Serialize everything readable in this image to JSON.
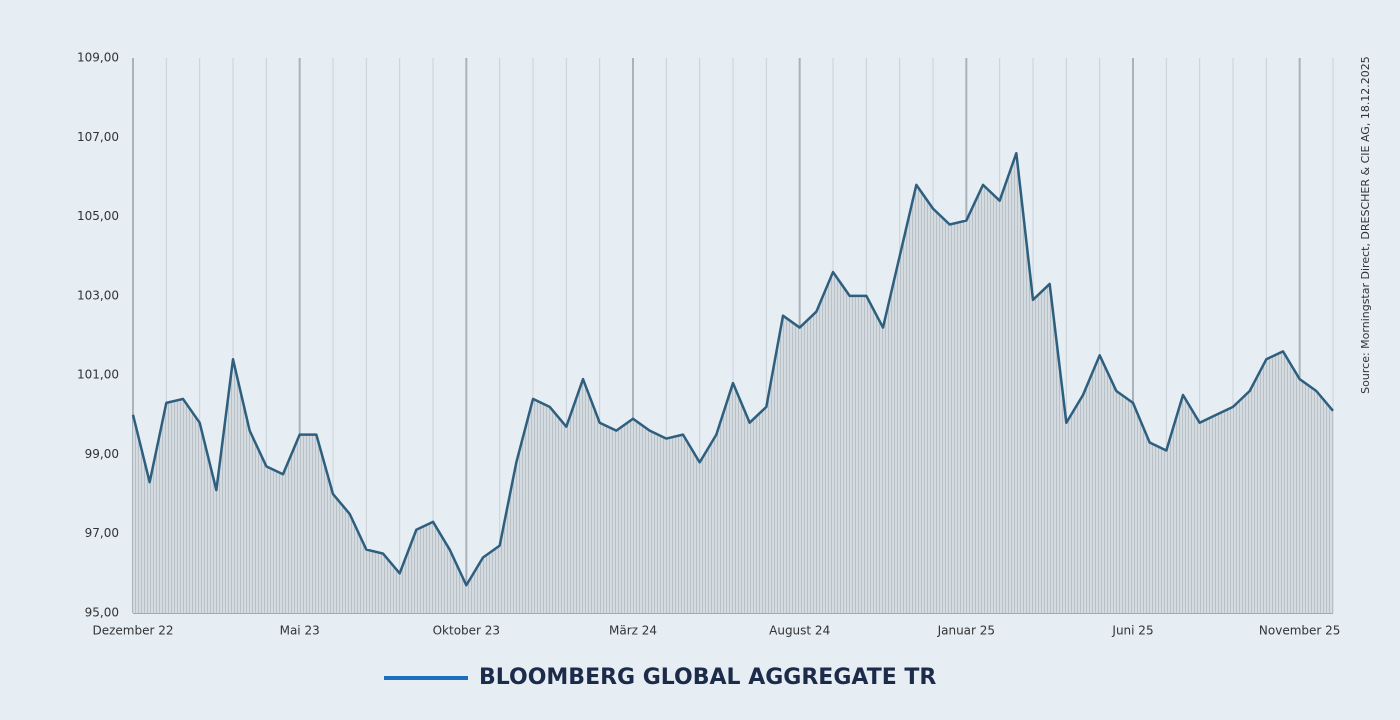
{
  "chart_data": {
    "type": "line",
    "source": "Source: Morningstar Direct, DRESCHER & CIE AG, 18.12.2025",
    "categories": [
      "Dezember 22",
      null,
      null,
      null,
      null,
      null,
      null,
      null,
      null,
      null,
      "Mai 23",
      null,
      null,
      null,
      null,
      null,
      null,
      null,
      null,
      null,
      "Oktober 23",
      null,
      null,
      null,
      null,
      null,
      null,
      null,
      null,
      null,
      "März 24",
      null,
      null,
      null,
      null,
      null,
      null,
      null,
      null,
      null,
      "August 24",
      null,
      null,
      null,
      null,
      null,
      null,
      null,
      null,
      null,
      "Januar 25",
      null,
      null,
      null,
      null,
      null,
      null,
      null,
      null,
      null,
      "Juni 25",
      null,
      null,
      null,
      null,
      null,
      null,
      null,
      null,
      null,
      "November 25",
      null,
      null
    ],
    "series": [
      {
        "name": "BLOOMBERG GLOBAL AGGREGATE TR",
        "color": "#2e5f7f",
        "legend_color": "#1f6fbf",
        "values": [
          100.0,
          98.3,
          100.3,
          100.4,
          99.8,
          98.1,
          101.4,
          99.6,
          98.7,
          98.5,
          99.5,
          99.5,
          98.0,
          97.5,
          96.6,
          96.5,
          96.0,
          97.1,
          97.3,
          96.6,
          95.7,
          96.4,
          96.7,
          98.8,
          100.4,
          100.2,
          99.7,
          100.9,
          99.8,
          99.6,
          99.9,
          99.6,
          99.4,
          99.5,
          98.8,
          99.5,
          100.8,
          99.8,
          100.2,
          102.5,
          102.2,
          102.6,
          103.6,
          103.0,
          103.0,
          102.2,
          104.0,
          105.8,
          105.2,
          104.8,
          104.9,
          105.8,
          105.4,
          106.6,
          102.9,
          103.3,
          99.8,
          100.5,
          101.5,
          100.6,
          100.3,
          99.3,
          99.1,
          100.5,
          99.8,
          100.0,
          100.2,
          100.6,
          101.4,
          101.6,
          100.9,
          100.6,
          100.1
        ]
      }
    ],
    "ylim": [
      95,
      109
    ],
    "yticks": [
      {
        "value": 95,
        "label": "95,00"
      },
      {
        "value": 97,
        "label": "97,00"
      },
      {
        "value": 99,
        "label": "99,00"
      },
      {
        "value": 101,
        "label": "101,00"
      },
      {
        "value": 103,
        "label": "103,00"
      },
      {
        "value": 105,
        "label": "105,00"
      },
      {
        "value": 107,
        "label": "107,00"
      },
      {
        "value": 109,
        "label": "109,00"
      }
    ],
    "area_fill": true
  }
}
